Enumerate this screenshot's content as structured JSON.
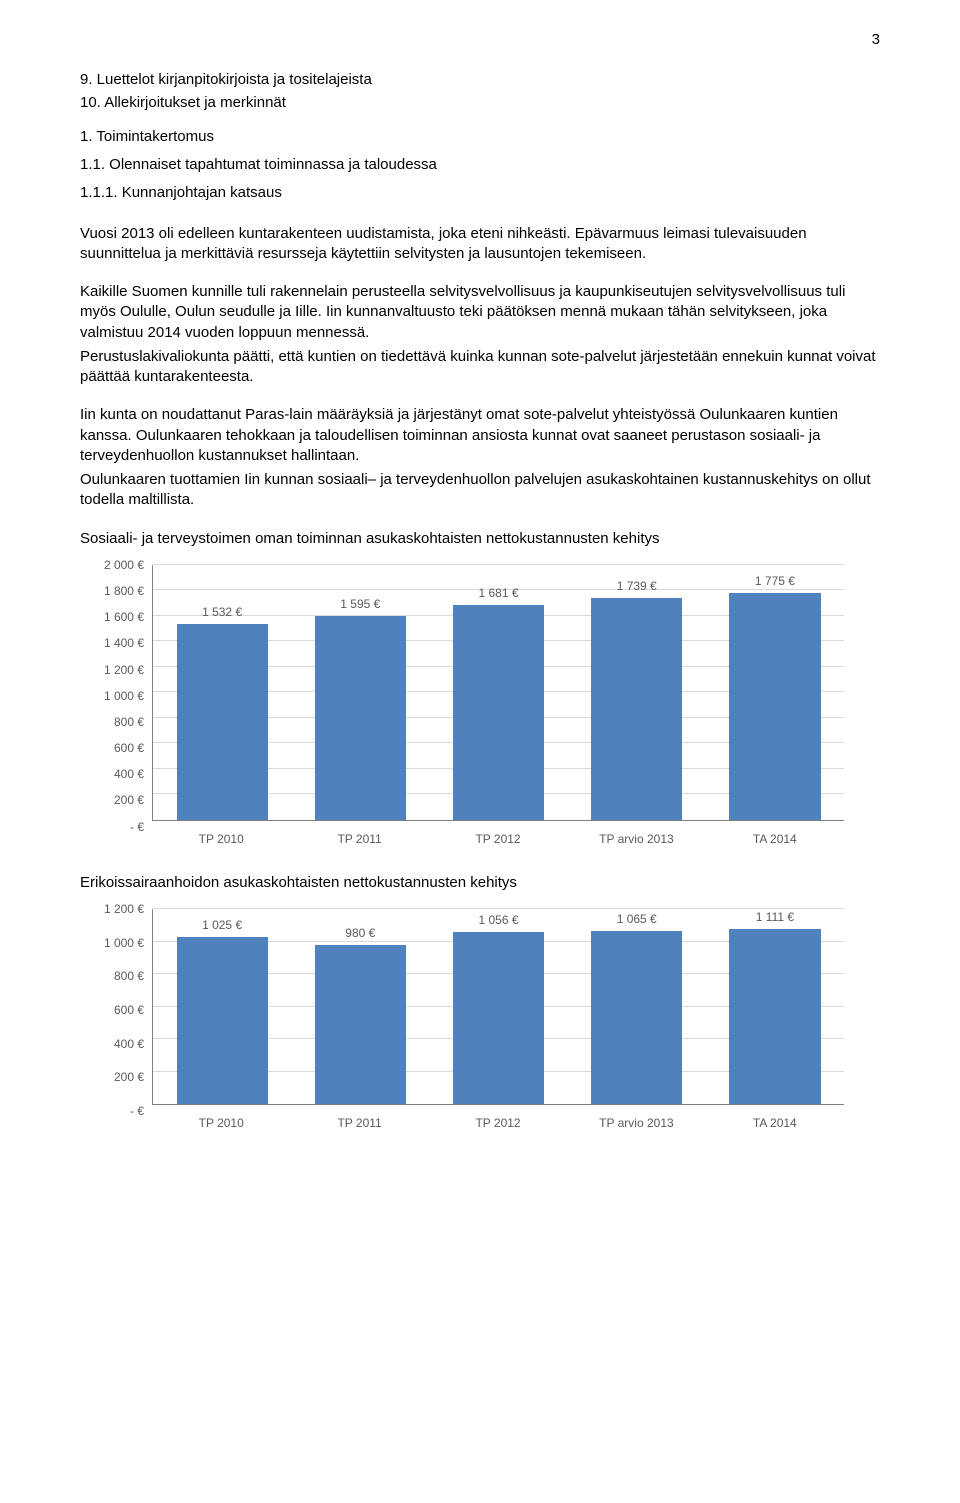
{
  "page_number": "3",
  "toc": {
    "l1": "9. Luettelot kirjanpitokirjoista ja tositelajeista",
    "l2": "10. Allekirjoitukset ja merkinnät"
  },
  "headings": {
    "h1": "1. Toimintakertomus",
    "h2": "1.1. Olennaiset tapahtumat toiminnassa ja taloudessa",
    "h3": "1.1.1. Kunnanjohtajan katsaus"
  },
  "paragraphs": {
    "p1": "Vuosi 2013 oli edelleen kuntarakenteen uudistamista, joka eteni nihkeästi. Epävarmuus leimasi tulevaisuuden suunnittelua ja merkittäviä resursseja käytettiin selvitysten ja lausuntojen tekemiseen.",
    "p2": "Kaikille Suomen kunnille tuli rakennelain perusteella selvitysvelvollisuus ja kaupunkiseutujen selvitysvelvollisuus tuli myös Oululle, Oulun seudulle ja Iille. Iin kunnanvaltuusto teki päätöksen mennä mukaan tähän selvitykseen, joka valmistuu 2014 vuoden loppuun mennessä.",
    "p3": "Perustuslakivaliokunta päätti, että kuntien on tiedettävä kuinka kunnan sote-palvelut järjestetään ennekuin kunnat voivat päättää kuntarakenteesta.",
    "p4": "Iin kunta on noudattanut Paras-lain määräyksiä ja järjestänyt omat sote-palvelut yhteistyössä Oulunkaaren kuntien kanssa. Oulunkaaren tehokkaan ja taloudellisen toiminnan ansiosta kunnat ovat saaneet perustason sosiaali- ja terveydenhuollon kustannukset hallintaan.",
    "p5": "Oulunkaaren tuottamien Iin kunnan sosiaali– ja terveydenhuollon palvelujen asukaskohtainen kustannuskehitys on ollut todella maltillista.",
    "caption1": "Sosiaali- ja terveystoimen oman toiminnan asukaskohtaisten nettokustannusten kehitys",
    "caption2": "Erikoissairaanhoidon asukaskohtaisten nettokustannusten kehitys"
  },
  "chart1": {
    "type": "bar",
    "categories": [
      "TP 2010",
      "TP 2011",
      "TP 2012",
      "TP arvio 2013",
      "TA 2014"
    ],
    "values": [
      1532,
      1595,
      1681,
      1739,
      1775
    ],
    "value_labels": [
      "1 532 €",
      "1 595 €",
      "1 681 €",
      "1 739 €",
      "1 775 €"
    ],
    "bar_color": "#4f81bd",
    "ylim": [
      0,
      2000
    ],
    "ytick_step": 200,
    "ytick_labels": [
      "- €",
      "200 €",
      "400 €",
      "600 €",
      "800 €",
      "1 000 €",
      "1 200 €",
      "1 400 €",
      "1 600 €",
      "1 800 €",
      "2 000 €"
    ],
    "grid_color": "#d9d9d9",
    "axis_color": "#808080",
    "text_color": "#595959",
    "label_fontsize": 12,
    "background_color": "#ffffff"
  },
  "chart2": {
    "type": "bar",
    "categories": [
      "TP 2010",
      "TP 2011",
      "TP 2012",
      "TP arvio 2013",
      "TA 2014"
    ],
    "values": [
      1025,
      980,
      1056,
      1065,
      1111
    ],
    "value_labels": [
      "1 025 €",
      "980 €",
      "1 056 €",
      "1 065 €",
      "1 111 €"
    ],
    "bar_color": "#4f81bd",
    "ylim": [
      0,
      1200
    ],
    "ytick_step": 200,
    "ytick_labels": [
      "- €",
      "200 €",
      "400 €",
      "600 €",
      "800 €",
      "1 000 €",
      "1 200 €"
    ],
    "grid_color": "#d9d9d9",
    "axis_color": "#808080",
    "text_color": "#595959",
    "label_fontsize": 12,
    "background_color": "#ffffff"
  }
}
